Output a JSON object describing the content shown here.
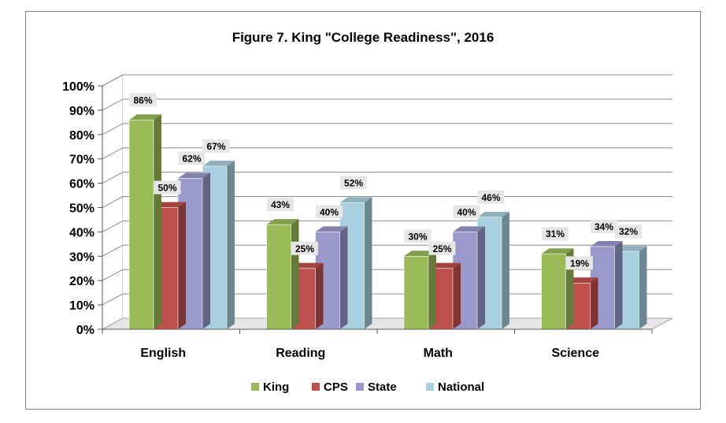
{
  "chart_data": {
    "type": "bar",
    "title": "Figure 7. King \"College Readiness\", 2016",
    "categories": [
      "English",
      "Reading",
      "Math",
      "Science"
    ],
    "series": [
      {
        "name": "King",
        "values": [
          86,
          43,
          30,
          31
        ],
        "color": "#9bbb59"
      },
      {
        "name": "CPS",
        "values": [
          50,
          25,
          25,
          19
        ],
        "color": "#c0504d"
      },
      {
        "name": "State",
        "values": [
          62,
          40,
          40,
          34
        ],
        "color": "#9999cc"
      },
      {
        "name": "National",
        "values": [
          67,
          52,
          46,
          32
        ],
        "color": "#a8d0de"
      }
    ],
    "value_suffix": "%",
    "yticks": [
      "0%",
      "10%",
      "20%",
      "30%",
      "40%",
      "50%",
      "60%",
      "70%",
      "80%",
      "90%",
      "100%"
    ],
    "ylim": [
      0,
      100
    ],
    "grid": true,
    "legend_position": "bottom",
    "style": "3d-clustered-column"
  }
}
